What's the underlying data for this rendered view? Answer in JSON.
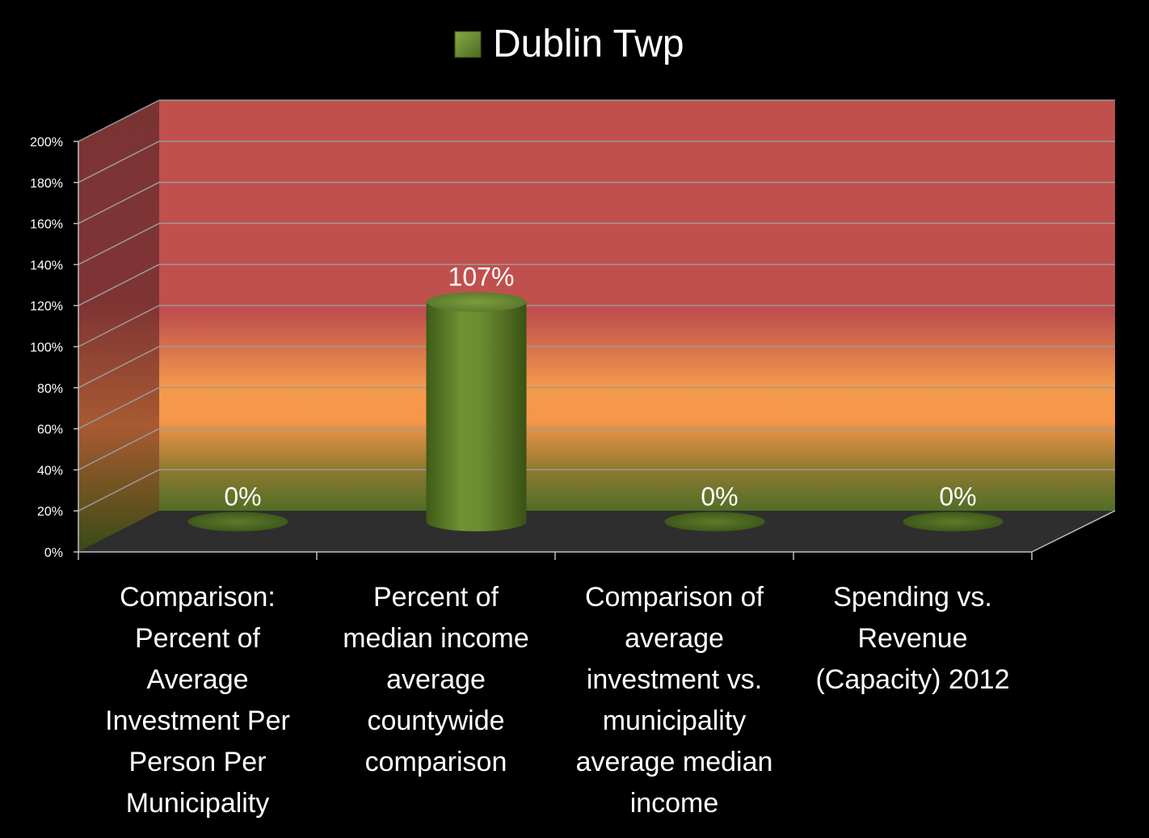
{
  "chart_data": {
    "type": "bar",
    "title": "",
    "categories": [
      "Comparison: Percent of Average Investment Per Person Per Municipality",
      "Percent of median income average countywide comparison",
      "Comparison of average investment vs. municipality average median income",
      "Spending vs. Revenue (Capacity) 2012"
    ],
    "category_lines": [
      [
        "Comparison:",
        "Percent of",
        "Average",
        "Investment Per",
        "Person Per",
        "Municipality"
      ],
      [
        "Percent of",
        "median income",
        "average",
        "countywide",
        "comparison"
      ],
      [
        "Comparison of",
        "average",
        "investment vs.",
        "municipality",
        "average median",
        "income"
      ],
      [
        "Spending vs.",
        "Revenue",
        "(Capacity) 2012"
      ]
    ],
    "series": [
      {
        "name": "Dublin Twp",
        "values": [
          0,
          107,
          0,
          0
        ],
        "color": "#6b8a2f"
      }
    ],
    "data_labels": [
      "0%",
      "107%",
      "0%",
      "0%"
    ],
    "y_ticks": [
      "0%",
      "20%",
      "40%",
      "60%",
      "80%",
      "100%",
      "120%",
      "140%",
      "160%",
      "180%",
      "200%"
    ],
    "ylim": [
      0,
      200
    ],
    "grid": true,
    "legend": "top-center",
    "background_bands": [
      {
        "from": 0,
        "to": 20,
        "color": "#5a7a2a"
      },
      {
        "from": 40,
        "to": 80,
        "color": "#f7964a"
      },
      {
        "from": 100,
        "to": 200,
        "color": "#c0504d"
      }
    ]
  }
}
